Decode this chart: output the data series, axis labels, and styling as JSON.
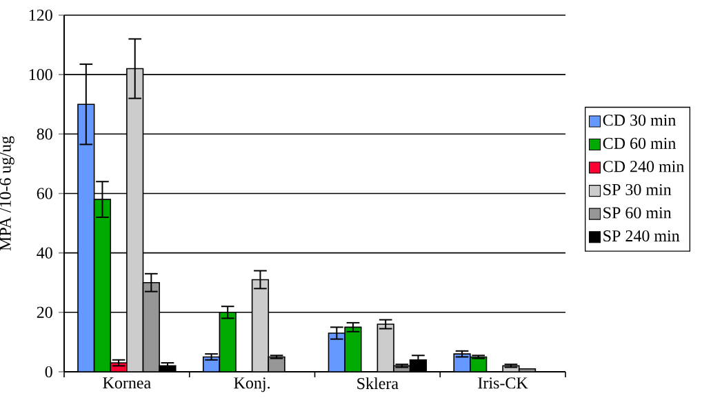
{
  "chart_data": {
    "type": "bar",
    "ylabel": "MPA /10-6 ug/ug",
    "categories": [
      "Kornea",
      "Konj.",
      "Sklera",
      "Iris-CK"
    ],
    "series": [
      {
        "name": "CD 30 min",
        "color": "#6699ff",
        "values": [
          90,
          5,
          13,
          6
        ],
        "errors": [
          13.5,
          1,
          2,
          1
        ]
      },
      {
        "name": "CD 60 min",
        "color": "#00aa00",
        "values": [
          58,
          20,
          15,
          5
        ],
        "errors": [
          6,
          2,
          1.5,
          0.5
        ]
      },
      {
        "name": "CD 240 min",
        "color": "#ff0033",
        "values": [
          3,
          null,
          null,
          null
        ],
        "errors": [
          1,
          null,
          null,
          null
        ]
      },
      {
        "name": "SP 30 min",
        "color": "#cccccc",
        "values": [
          102,
          31,
          16,
          2
        ],
        "errors": [
          10,
          3,
          1.5,
          0.5
        ]
      },
      {
        "name": "SP 60 min",
        "color": "#969696",
        "values": [
          30,
          5,
          2,
          1
        ],
        "errors": [
          3,
          0.5,
          0.5,
          null
        ]
      },
      {
        "name": "SP 240 min",
        "color": "#000000",
        "values": [
          2,
          null,
          4,
          null
        ],
        "errors": [
          1,
          null,
          1.5,
          null
        ]
      }
    ],
    "ylim": [
      0,
      120
    ],
    "yticks": [
      0,
      20,
      40,
      60,
      80,
      100,
      120
    ],
    "grid": "y",
    "legend": "right"
  }
}
